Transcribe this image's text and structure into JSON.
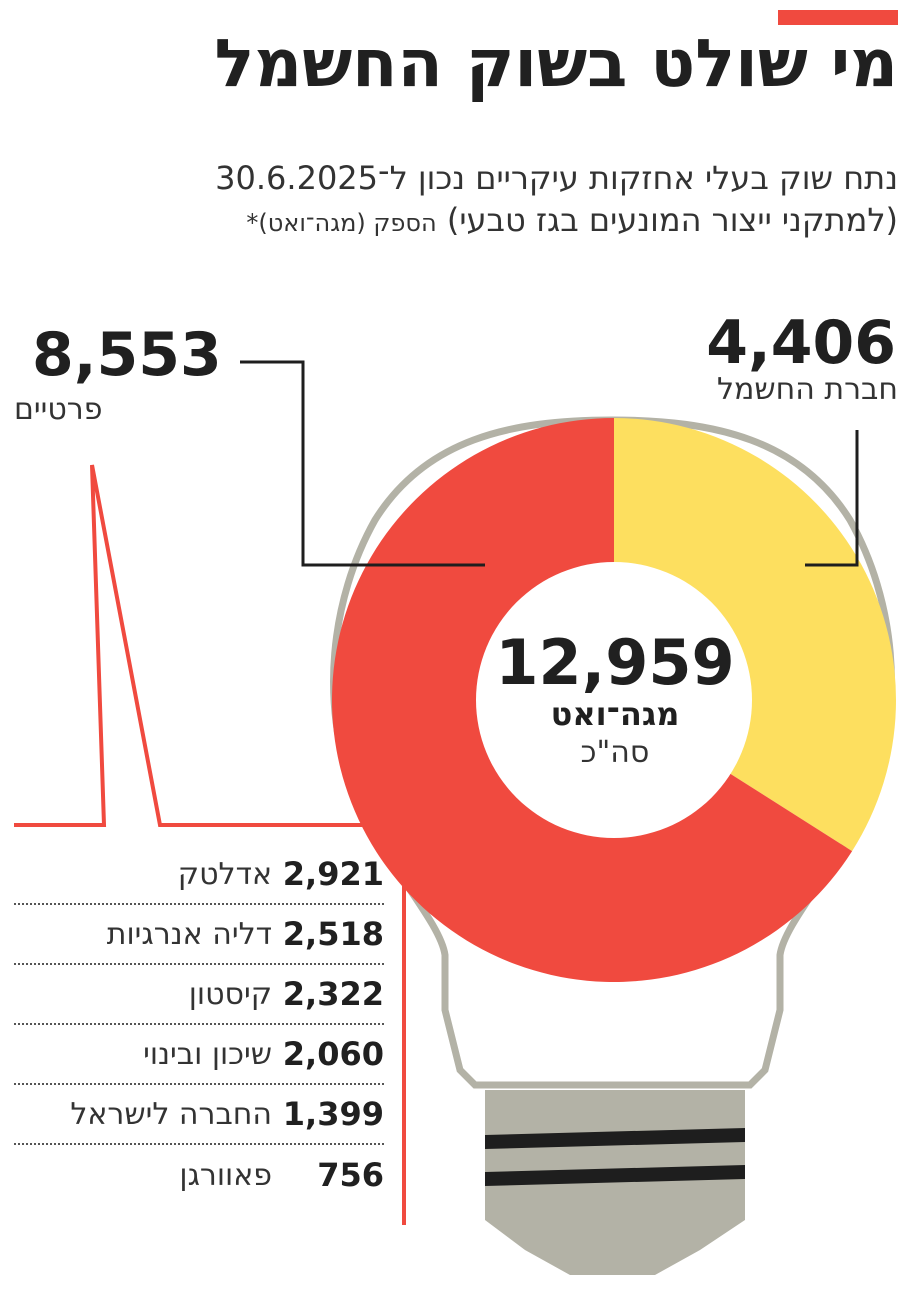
{
  "header": {
    "title": "מי שולט בשוק החשמל",
    "subtitle_line1": "נתח שוק בעלי אחזקות עיקריים נכון ל־30.6.2025",
    "subtitle_line2_main": "(למתקני ייצור המונעים בגז טבעי)",
    "subtitle_line2_small": "הספק (מגה־ואט)*"
  },
  "colors": {
    "accent": "#f04a3f",
    "private": "#f04a3f",
    "iec": "#fddf5f",
    "bulb_outline": "#b3b2a6",
    "bulb_base": "#b3b2a6",
    "base_stripes": "#1e1e1e"
  },
  "chart_data": {
    "type": "pie",
    "title": "מי שולט בשוק החשמל",
    "total": {
      "value": "12,959",
      "unit": "מגה־ואט",
      "label": "סה\"כ"
    },
    "slices": [
      {
        "name": "חברת החשמל",
        "value": 4406,
        "value_label": "4,406",
        "color": "#fddf5f"
      },
      {
        "name": "פרטיים",
        "value": 8553,
        "value_label": "8,553",
        "color": "#f04a3f"
      }
    ],
    "private_breakdown": [
      {
        "name": "אדלטק",
        "value": "2,921"
      },
      {
        "name": "דליה אנרגיות",
        "value": "2,518"
      },
      {
        "name": "קיסטון",
        "value": "2,322"
      },
      {
        "name": "שיכון ובינוי",
        "value": "2,060"
      },
      {
        "name": "החברה לישראל",
        "value": "1,399"
      },
      {
        "name": "פאוורגן",
        "value": "756"
      }
    ]
  }
}
